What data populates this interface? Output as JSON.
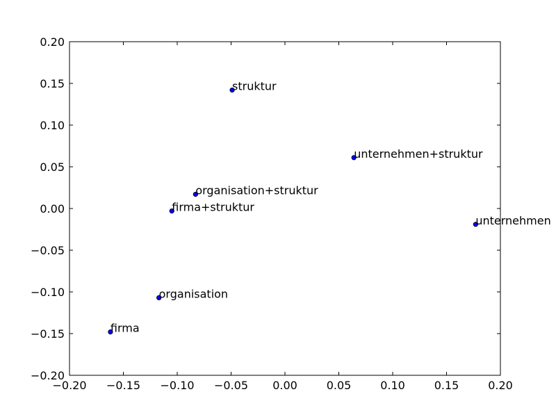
{
  "chart_data": {
    "type": "scatter",
    "title": "",
    "xlabel": "",
    "ylabel": "",
    "xlim": [
      -0.2,
      0.2
    ],
    "ylim": [
      -0.2,
      0.2
    ],
    "xticks": [
      -0.2,
      -0.15,
      -0.1,
      -0.05,
      0.0,
      0.05,
      0.1,
      0.15,
      0.2
    ],
    "yticks": [
      -0.2,
      -0.15,
      -0.1,
      -0.05,
      0.0,
      0.05,
      0.1,
      0.15,
      0.2
    ],
    "grid": false,
    "marker_color": "#0000ff",
    "marker_edge_color": "#000000",
    "points": [
      {
        "label": "struktur",
        "x": -0.049,
        "y": 0.142
      },
      {
        "label": "unternehmen+struktur",
        "x": 0.064,
        "y": 0.061
      },
      {
        "label": "organisation+struktur",
        "x": -0.083,
        "y": 0.017
      },
      {
        "label": "firma+struktur",
        "x": -0.105,
        "y": -0.003
      },
      {
        "label": "unternehmen",
        "x": 0.177,
        "y": -0.019
      },
      {
        "label": "organisation",
        "x": -0.117,
        "y": -0.107
      },
      {
        "label": "firma",
        "x": -0.162,
        "y": -0.148
      }
    ]
  }
}
